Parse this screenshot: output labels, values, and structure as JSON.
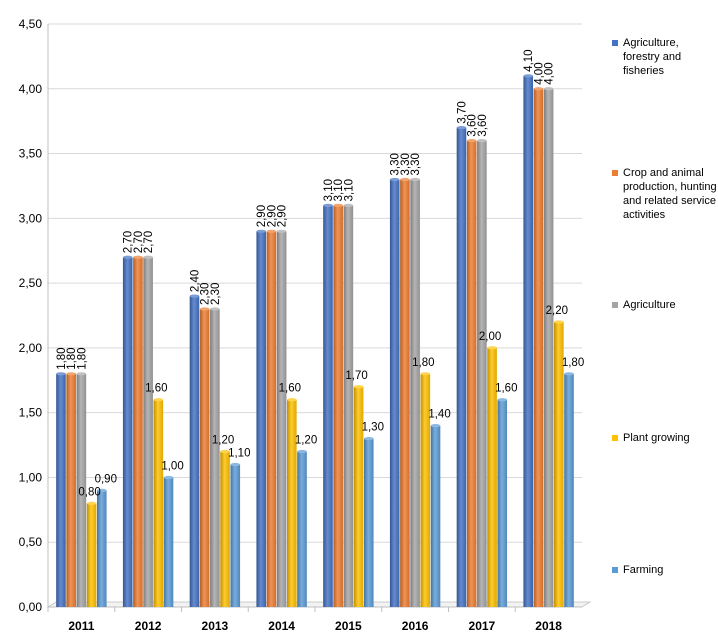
{
  "chart_data": {
    "type": "bar",
    "categories": [
      "2011",
      "2012",
      "2013",
      "2014",
      "2015",
      "2016",
      "2017",
      "2018"
    ],
    "series": [
      {
        "name": "Agriculture, forestry and fisheries",
        "color": "#4472C4",
        "values": [
          1.8,
          2.7,
          2.4,
          2.9,
          3.1,
          3.3,
          3.7,
          4.1
        ],
        "labels": [
          "1,80",
          "2,70",
          "2,40",
          "2,90",
          "3,10",
          "3,30",
          "3,70",
          "4,10"
        ]
      },
      {
        "name": "Crop and animal production, hunting and related service activities",
        "color": "#ED7D31",
        "values": [
          1.8,
          2.7,
          2.3,
          2.9,
          3.1,
          3.3,
          3.6,
          4.0
        ],
        "labels": [
          "1,80",
          "2,70",
          "2,30",
          "2,90",
          "3,10",
          "3,30",
          "3,60",
          "4,00"
        ]
      },
      {
        "name": "Agriculture",
        "color": "#A5A5A5",
        "values": [
          1.8,
          2.7,
          2.3,
          2.9,
          3.1,
          3.3,
          3.6,
          4.0
        ],
        "labels": [
          "1,80",
          "2,70",
          "2,30",
          "2,90",
          "3,10",
          "3,30",
          "3,60",
          "4,00"
        ]
      },
      {
        "name": "Plant growing",
        "color": "#FFC000",
        "values": [
          0.8,
          1.6,
          1.2,
          1.6,
          1.7,
          1.8,
          2.0,
          2.2
        ],
        "labels": [
          "0,80",
          "1,60",
          "1,20",
          "1,60",
          "1,70",
          "1,80",
          "2,00",
          "2,20"
        ]
      },
      {
        "name": "Farming",
        "color": "#5B9BD5",
        "values": [
          0.9,
          1.0,
          1.1,
          1.2,
          1.3,
          1.4,
          1.6,
          1.8
        ],
        "labels": [
          "0,90",
          "1,00",
          "1,10",
          "1,20",
          "1,30",
          "1,40",
          "1,60",
          "1,80"
        ]
      }
    ],
    "ylim": [
      0,
      4.5
    ],
    "yticks": [
      0,
      0.5,
      1.0,
      1.5,
      2.0,
      2.5,
      3.0,
      3.5,
      4.0,
      4.5
    ],
    "ytick_labels": [
      "0,00",
      "0,50",
      "1,00",
      "1,50",
      "2,00",
      "2,50",
      "3,00",
      "3,50",
      "4,00",
      "4,50"
    ],
    "grid": true,
    "legend_position": "right",
    "title": "",
    "xlabel": "",
    "ylabel": ""
  }
}
